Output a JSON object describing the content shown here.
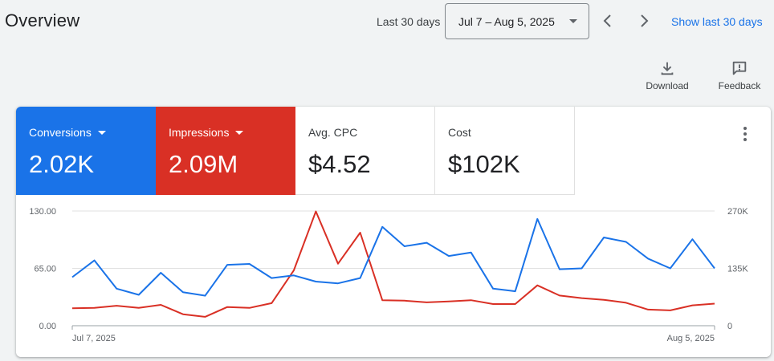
{
  "header": {
    "title": "Overview",
    "range_label": "Last 30 days",
    "date_range": "Jul 7 – Aug 5, 2025",
    "show_last_label": "Show last 30 days",
    "prev_icon": "chevron-left-icon",
    "next_icon": "chevron-right-icon"
  },
  "tools": {
    "download_label": "Download",
    "feedback_label": "Feedback"
  },
  "metrics": [
    {
      "label": "Conversions",
      "value": "2.02K",
      "color": "#1a73e8"
    },
    {
      "label": "Impressions",
      "value": "2.09M",
      "color": "#d93025"
    },
    {
      "label": "Avg. CPC",
      "value": "$4.52"
    },
    {
      "label": "Cost",
      "value": "$102K"
    }
  ],
  "chart_data": {
    "type": "line",
    "x_labels": [
      "Jul 7, 2025",
      "Aug 5, 2025"
    ],
    "x": [
      "2025-07-07",
      "2025-07-08",
      "2025-07-09",
      "2025-07-10",
      "2025-07-11",
      "2025-07-12",
      "2025-07-13",
      "2025-07-14",
      "2025-07-15",
      "2025-07-16",
      "2025-07-17",
      "2025-07-18",
      "2025-07-19",
      "2025-07-20",
      "2025-07-21",
      "2025-07-22",
      "2025-07-23",
      "2025-07-24",
      "2025-07-25",
      "2025-07-26",
      "2025-07-27",
      "2025-07-28",
      "2025-07-29",
      "2025-07-30",
      "2025-07-31",
      "2025-08-01",
      "2025-08-02",
      "2025-08-03",
      "2025-08-04",
      "2025-08-05"
    ],
    "left_axis": {
      "ticks": [
        "0.00",
        "65.00",
        "130.00"
      ],
      "range": [
        0,
        130
      ]
    },
    "right_axis": {
      "ticks": [
        "0",
        "135K",
        "270K"
      ],
      "range": [
        0,
        270000
      ]
    },
    "grid": true,
    "series": [
      {
        "name": "Conversions",
        "axis": "left",
        "color": "#1a73e8",
        "values": [
          55,
          74,
          42,
          35,
          60,
          38,
          34,
          69,
          70,
          54,
          57,
          50,
          48,
          54,
          112,
          90,
          94,
          79,
          83,
          42,
          39,
          121,
          64,
          65,
          100,
          95,
          76,
          65,
          98,
          65
        ]
      },
      {
        "name": "Impressions",
        "axis": "right",
        "color": "#d93025",
        "values": [
          41000,
          42000,
          47000,
          42000,
          49000,
          27000,
          21000,
          44000,
          42000,
          53000,
          130000,
          269000,
          146000,
          219000,
          60000,
          59000,
          55000,
          57000,
          60000,
          51000,
          51000,
          95000,
          71000,
          65000,
          61000,
          54000,
          38000,
          36000,
          48000,
          52000
        ]
      }
    ]
  }
}
